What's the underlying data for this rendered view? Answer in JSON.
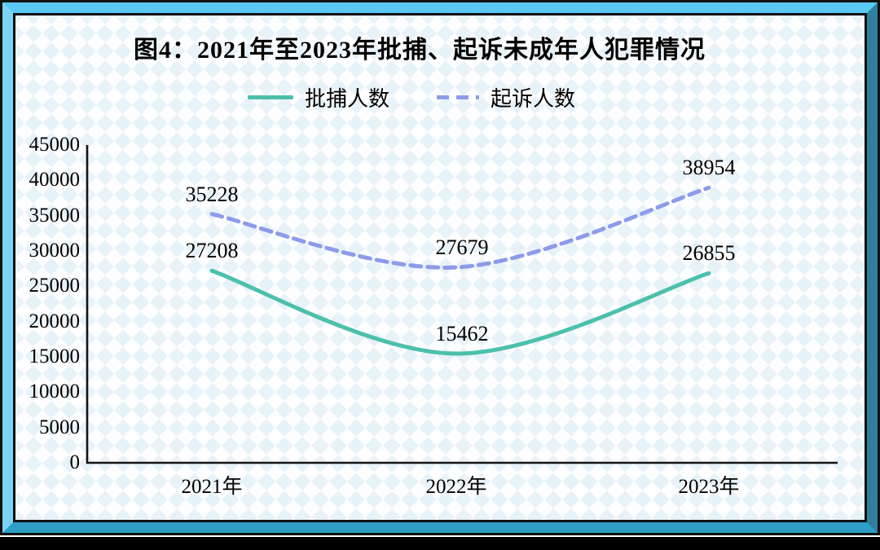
{
  "figure": {
    "title": "图4：2021年至2023年批捕、起诉未成年人犯罪情况"
  },
  "chart_data": {
    "type": "line",
    "title": "图4：2021年至2023年批捕、起诉未成年人犯罪情况",
    "categories": [
      "2021年",
      "2022年",
      "2023年"
    ],
    "series": [
      {
        "name": "批捕人数",
        "style": "solid",
        "color": "#4CC0AB",
        "values": [
          27208,
          15462,
          26855
        ]
      },
      {
        "name": "起诉人数",
        "style": "dashed",
        "color": "#8D9BE9",
        "values": [
          35228,
          27679,
          38954
        ]
      }
    ],
    "xlabel": "",
    "ylabel": "",
    "ylim": [
      0,
      45000
    ],
    "ytick_step": 5000,
    "grid": false,
    "legend_position": "top-center",
    "data_labels": true
  },
  "colors": {
    "axis": "#141414",
    "frame_top": "#59C8F3",
    "frame_left": "#7CD3F7",
    "frame_right": "#2F7E9E",
    "frame_bottom": "#2E9EC4",
    "frame_line": "#101010",
    "pattern_diamond": "#E8F2F9",
    "bottom_band": "#000000"
  }
}
